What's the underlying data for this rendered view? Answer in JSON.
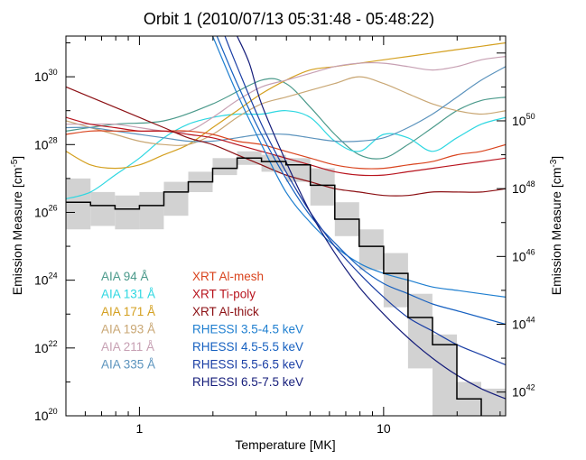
{
  "chart_data": {
    "type": "line",
    "title": "Orbit 1 (2010/07/13 05:31:48 - 05:48:22)",
    "xlabel": "Temperature [MK]",
    "ylabel_left": "Emission Measure [cm",
    "ylabel_left_exp": "-5",
    "ylabel_right": "Emission Measure [cm",
    "ylabel_right_exp": "-3",
    "x_scale": "log",
    "y_scale": "log",
    "xlim": [
      0.5,
      31.6
    ],
    "ylim_left_exp": [
      20,
      31.2
    ],
    "ylim_right_exp": [
      41.3,
      52.5
    ],
    "x_ticks": [
      {
        "value": 1,
        "label": "1"
      },
      {
        "value": 10,
        "label": "10"
      }
    ],
    "y_ticks_left": [
      {
        "exp": 20,
        "label": "10",
        "sup": "20"
      },
      {
        "exp": 22,
        "label": "10",
        "sup": "22"
      },
      {
        "exp": 24,
        "label": "10",
        "sup": "24"
      },
      {
        "exp": 26,
        "label": "10",
        "sup": "26"
      },
      {
        "exp": 28,
        "label": "10",
        "sup": "28"
      },
      {
        "exp": 30,
        "label": "10",
        "sup": "30"
      }
    ],
    "y_ticks_right": [
      {
        "exp": 42,
        "label": "10",
        "sup": "42"
      },
      {
        "exp": 44,
        "label": "10",
        "sup": "44"
      },
      {
        "exp": 46,
        "label": "10",
        "sup": "46"
      },
      {
        "exp": 48,
        "label": "10",
        "sup": "48"
      },
      {
        "exp": 50,
        "label": "10",
        "sup": "50"
      }
    ],
    "dem": {
      "bin_edges_logT": [
        5.7,
        5.8,
        5.9,
        6.0,
        6.1,
        6.2,
        6.3,
        6.4,
        6.5,
        6.6,
        6.7,
        6.8,
        6.9,
        7.0,
        7.1,
        7.2,
        7.3,
        7.4,
        7.5
      ],
      "log_em": [
        26.3,
        26.2,
        26.1,
        26.2,
        26.6,
        26.9,
        27.3,
        27.6,
        27.5,
        27.4,
        26.8,
        25.8,
        25.0,
        24.2,
        22.9,
        22.1,
        20.5,
        19.8
      ],
      "err_low": [
        25.5,
        25.6,
        25.5,
        25.5,
        25.9,
        26.6,
        27.1,
        27.4,
        27.2,
        26.9,
        26.2,
        25.3,
        24.3,
        23.2,
        21.4,
        20.0,
        20.0,
        20.0
      ],
      "err_high": [
        27.0,
        26.6,
        26.5,
        26.6,
        26.9,
        27.2,
        27.6,
        27.8,
        27.7,
        27.6,
        27.3,
        26.3,
        25.5,
        24.8,
        23.6,
        22.4,
        21.0,
        20.8
      ]
    },
    "series": [
      {
        "name": "AIA 94 Å",
        "color": "#4b9a8b",
        "x": [
          5.7,
          5.9,
          6.1,
          6.3,
          6.5,
          6.6,
          6.7,
          6.8,
          6.9,
          7.0,
          7.1,
          7.2,
          7.3,
          7.4,
          7.5
        ],
        "y": [
          28.4,
          28.6,
          28.7,
          29.2,
          29.9,
          29.8,
          29.1,
          28.3,
          27.7,
          27.6,
          28.0,
          28.5,
          29.0,
          29.3,
          29.4
        ]
      },
      {
        "name": "AIA 131 Å",
        "color": "#2ed7e1",
        "x": [
          5.7,
          5.8,
          5.9,
          6.0,
          6.1,
          6.2,
          6.3,
          6.4,
          6.5,
          6.6,
          6.7,
          6.8,
          6.9,
          7.0,
          7.1,
          7.2,
          7.3,
          7.4,
          7.5
        ],
        "y": [
          26.4,
          26.6,
          27.1,
          27.6,
          28.2,
          28.6,
          28.8,
          28.9,
          28.9,
          29.0,
          28.8,
          28.1,
          27.8,
          28.3,
          28.2,
          27.8,
          28.2,
          28.6,
          28.8
        ]
      },
      {
        "name": "AIA 171 Å",
        "color": "#d4a020",
        "x": [
          5.7,
          5.8,
          5.9,
          6.0,
          6.1,
          6.2,
          6.3,
          6.4,
          6.5,
          6.6,
          6.7,
          6.8,
          6.9,
          7.0,
          7.1,
          7.2,
          7.3,
          7.4,
          7.5
        ],
        "y": [
          27.8,
          27.4,
          27.3,
          27.4,
          27.7,
          28.0,
          28.5,
          29.0,
          29.5,
          29.9,
          30.2,
          30.3,
          30.4,
          30.5,
          30.6,
          30.7,
          30.8,
          30.9,
          31.0
        ]
      },
      {
        "name": "AIA 193 Å",
        "color": "#c9a774",
        "x": [
          5.7,
          5.8,
          5.9,
          6.0,
          6.1,
          6.2,
          6.3,
          6.4,
          6.5,
          6.6,
          6.7,
          6.8,
          6.9,
          7.0,
          7.1,
          7.2,
          7.3,
          7.4,
          7.5
        ],
        "y": [
          28.7,
          28.5,
          28.3,
          28.1,
          28.0,
          28.0,
          28.3,
          28.8,
          29.2,
          29.4,
          29.6,
          29.8,
          30.0,
          29.8,
          29.5,
          29.2,
          29.0,
          28.9,
          29.0
        ]
      },
      {
        "name": "AIA 211 Å",
        "color": "#c7a0b3",
        "x": [
          5.7,
          5.8,
          5.9,
          6.0,
          6.1,
          6.2,
          6.3,
          6.4,
          6.5,
          6.6,
          6.7,
          6.8,
          6.9,
          7.0,
          7.1,
          7.2,
          7.3,
          7.4,
          7.5
        ],
        "y": [
          28.6,
          28.6,
          28.6,
          28.5,
          28.4,
          28.4,
          28.8,
          29.3,
          29.7,
          29.9,
          30.1,
          30.3,
          30.4,
          30.4,
          30.3,
          30.2,
          30.3,
          30.5,
          30.6
        ]
      },
      {
        "name": "AIA 335 Å",
        "color": "#5b93bd",
        "x": [
          5.7,
          5.8,
          5.9,
          6.0,
          6.1,
          6.2,
          6.3,
          6.4,
          6.5,
          6.6,
          6.7,
          6.8,
          6.9,
          7.0,
          7.1,
          7.2,
          7.3,
          7.4,
          7.5
        ],
        "y": [
          28.5,
          28.5,
          28.4,
          28.3,
          28.2,
          28.1,
          28.1,
          28.2,
          28.3,
          28.3,
          28.2,
          28.1,
          28.1,
          28.2,
          28.5,
          28.9,
          29.4,
          29.9,
          30.3
        ]
      },
      {
        "name": "XRT Al-mesh",
        "color": "#d9441e",
        "x": [
          5.7,
          5.8,
          5.9,
          6.0,
          6.1,
          6.2,
          6.3,
          6.4,
          6.5,
          6.6,
          6.7,
          6.8,
          6.9,
          7.0,
          7.1,
          7.2,
          7.3,
          7.4,
          7.5
        ],
        "y": [
          28.3,
          28.4,
          28.4,
          28.4,
          28.4,
          28.4,
          28.3,
          28.1,
          28.0,
          27.8,
          27.6,
          27.4,
          27.3,
          27.3,
          27.4,
          27.5,
          27.7,
          27.8,
          28.0
        ]
      },
      {
        "name": "XRT Ti-poly",
        "color": "#b8141e",
        "x": [
          5.7,
          5.8,
          5.9,
          6.0,
          6.1,
          6.2,
          6.3,
          6.4,
          6.5,
          6.6,
          6.7,
          6.8,
          6.9,
          7.0,
          7.1,
          7.2,
          7.3,
          7.4,
          7.5
        ],
        "y": [
          28.8,
          28.6,
          28.5,
          28.4,
          28.4,
          28.3,
          28.2,
          28.0,
          27.8,
          27.6,
          27.4,
          27.2,
          27.1,
          27.1,
          27.2,
          27.3,
          27.4,
          27.5,
          27.6
        ]
      },
      {
        "name": "XRT Al-thick",
        "color": "#8c1014",
        "x": [
          5.7,
          5.8,
          5.9,
          6.0,
          6.1,
          6.2,
          6.3,
          6.4,
          6.5,
          6.6,
          6.7,
          6.8,
          6.9,
          7.0,
          7.1,
          7.2,
          7.3,
          7.4,
          7.5
        ],
        "y": [
          29.7,
          29.4,
          29.1,
          28.8,
          28.5,
          28.2,
          28.0,
          27.7,
          27.4,
          27.1,
          26.9,
          26.7,
          26.6,
          26.5,
          26.5,
          26.6,
          26.6,
          26.6,
          26.7
        ]
      },
      {
        "name": "RHESSI 3.5-4.5 keV",
        "color": "#1f7fd0",
        "x": [
          6.3,
          6.4,
          6.5,
          6.6,
          6.7,
          6.8,
          6.9,
          7.0,
          7.1,
          7.2,
          7.3,
          7.4,
          7.5
        ],
        "y": [
          31.2,
          29.5,
          28.0,
          26.6,
          25.7,
          25.0,
          24.5,
          24.2,
          24.0,
          23.8,
          23.7,
          23.6,
          23.5
        ]
      },
      {
        "name": "RHESSI 4.5-5.5 keV",
        "color": "#1660c0",
        "x": [
          6.3,
          6.4,
          6.5,
          6.6,
          6.7,
          6.8,
          6.9,
          7.0,
          7.1,
          7.2,
          7.3,
          7.4,
          7.5
        ],
        "y": [
          31.5,
          29.8,
          28.3,
          27.0,
          25.9,
          25.1,
          24.4,
          23.9,
          23.6,
          23.3,
          23.1,
          22.9,
          22.7
        ]
      },
      {
        "name": "RHESSI 5.5-6.5 keV",
        "color": "#1b3fa5",
        "x": [
          6.35,
          6.4,
          6.5,
          6.6,
          6.7,
          6.8,
          6.9,
          7.0,
          7.1,
          7.2,
          7.3,
          7.4,
          7.5
        ],
        "y": [
          31.2,
          30.3,
          28.6,
          27.2,
          26.0,
          25.0,
          24.2,
          23.5,
          22.9,
          22.5,
          22.1,
          21.8,
          21.5
        ]
      },
      {
        "name": "RHESSI 6.5-7.5 keV",
        "color": "#141c7a",
        "x": [
          6.4,
          6.45,
          6.5,
          6.6,
          6.7,
          6.8,
          6.9,
          7.0,
          7.1,
          7.2,
          7.3,
          7.4,
          7.5
        ],
        "y": [
          31.2,
          30.4,
          29.2,
          27.5,
          26.0,
          24.8,
          23.8,
          23.0,
          22.3,
          21.7,
          21.2,
          20.8,
          20.5
        ]
      }
    ]
  }
}
